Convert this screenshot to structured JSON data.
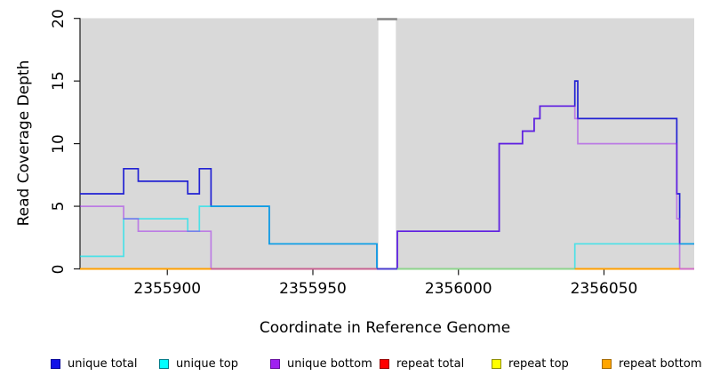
{
  "axes": {
    "y_label": "Read Coverage Depth",
    "x_label": "Coordinate in Reference Genome",
    "y_ticks": [
      "0",
      "5",
      "10",
      "15",
      "20"
    ],
    "x_ticks": [
      "2355900",
      "2355950",
      "2356000",
      "2356050"
    ]
  },
  "legend": {
    "items": [
      {
        "label": "unique total",
        "fill": "#1111e8",
        "border": "#000099"
      },
      {
        "label": "unique top",
        "fill": "#00ffff",
        "border": "#007d8a"
      },
      {
        "label": "unique bottom",
        "fill": "#a020f0",
        "border": "#660e9e"
      },
      {
        "label": "repeat total",
        "fill": "#ff0000",
        "border": "#990000"
      },
      {
        "label": "repeat top",
        "fill": "#ffff00",
        "border": "#8f8f00"
      },
      {
        "label": "repeat bottom",
        "fill": "#ffa500",
        "border": "#a66a00"
      }
    ]
  },
  "chart_data": {
    "type": "line",
    "subtype": "step-coverage",
    "title": "",
    "xlabel": "Coordinate in Reference Genome",
    "ylabel": "Read Coverage Depth",
    "xlim": [
      2355870,
      2356081
    ],
    "ylim": [
      0,
      20
    ],
    "x_tick_values": [
      2355900,
      2355950,
      2356000,
      2356050
    ],
    "y_tick_values": [
      0,
      5,
      10,
      15,
      20
    ],
    "background": "#d9d9d9",
    "grid": false,
    "legend_position": "bottom",
    "gap_region": {
      "from": 2355972.5,
      "to": 2355978.5,
      "cap_color": "#858585"
    },
    "series": [
      {
        "name": "unique total",
        "color": "#2222d3",
        "opacity": 1,
        "steps": [
          [
            2355870,
            6
          ],
          [
            2355885,
            8
          ],
          [
            2355890,
            7
          ],
          [
            2355907,
            6
          ],
          [
            2355911,
            8
          ],
          [
            2355915,
            5
          ],
          [
            2355935,
            2
          ],
          [
            2355972,
            0
          ],
          [
            2355979,
            3
          ],
          [
            2356014,
            10
          ],
          [
            2356022,
            11
          ],
          [
            2356026,
            12
          ],
          [
            2356028,
            13
          ],
          [
            2356040,
            15
          ],
          [
            2356041,
            12
          ],
          [
            2356075,
            6
          ],
          [
            2356076,
            2
          ]
        ],
        "end": 2356081
      },
      {
        "name": "unique top",
        "color": "#00e5ee",
        "opacity": 0.65,
        "steps": [
          [
            2355870,
            1
          ],
          [
            2355885,
            4
          ],
          [
            2355907,
            3
          ],
          [
            2355911,
            5
          ],
          [
            2355935,
            2
          ],
          [
            2355972,
            0
          ],
          [
            2356040,
            2
          ]
        ],
        "end": 2356081
      },
      {
        "name": "unique bottom",
        "color": "#a020f0",
        "opacity": 0.5,
        "steps": [
          [
            2355870,
            5
          ],
          [
            2355885,
            4
          ],
          [
            2355890,
            3
          ],
          [
            2355915,
            0
          ],
          [
            2355979,
            3
          ],
          [
            2356014,
            10
          ],
          [
            2356022,
            11
          ],
          [
            2356026,
            12
          ],
          [
            2356028,
            13
          ],
          [
            2356040,
            12
          ],
          [
            2356041,
            10
          ],
          [
            2356075,
            4
          ],
          [
            2356076,
            0
          ]
        ],
        "end": 2356081
      },
      {
        "name": "repeat total",
        "color": "#dd0000",
        "opacity": 1,
        "steps": [
          [
            2355870,
            0
          ]
        ],
        "end": 2356081
      },
      {
        "name": "repeat top",
        "color": "#ffff00",
        "opacity": 1,
        "steps": [
          [
            2355870,
            0
          ]
        ],
        "end": 2356081
      },
      {
        "name": "repeat bottom",
        "color": "#ff9e00",
        "opacity": 1,
        "steps": [
          [
            2355870,
            0
          ]
        ],
        "end": 2356081
      }
    ],
    "zero_line_segments": [
      {
        "from": 2355870,
        "to": 2355915,
        "color": "#ff9e00"
      },
      {
        "from": 2355915,
        "to": 2355972,
        "color": "#c55f96"
      },
      {
        "from": 2355972,
        "to": 2355979,
        "color": "#4a3ad0"
      },
      {
        "from": 2355979,
        "to": 2356040,
        "color": "#8ed58e"
      },
      {
        "from": 2356040,
        "to": 2356076,
        "color": "#ff9e00"
      },
      {
        "from": 2356076,
        "to": 2356081,
        "color": "#cf6ccf"
      }
    ]
  }
}
